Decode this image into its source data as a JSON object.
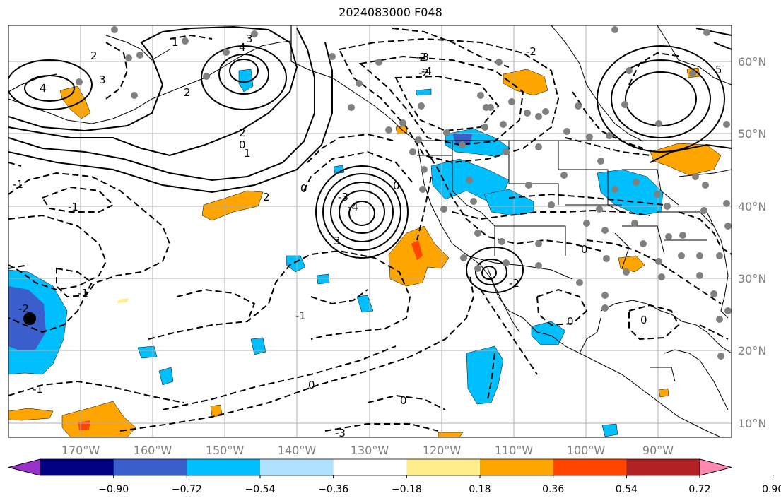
{
  "title": "2024083000 F048",
  "lon_ticks": [
    "170°W",
    "160°W",
    "150°W",
    "140°W",
    "130°W",
    "120°W",
    "110°W",
    "100°W",
    "90°W"
  ],
  "lat_ticks": [
    "60°N",
    "50°N",
    "40°N",
    "30°N",
    "20°N",
    "10°N"
  ],
  "contour_labels": [
    "2",
    "3",
    "4",
    "2",
    "1",
    "-1",
    "-2",
    "-3",
    "-4",
    "0",
    "2",
    "3",
    "4",
    "5",
    "-1",
    "-2",
    "0",
    "1",
    "2",
    "-1",
    "-3",
    "0",
    "-4",
    "-2",
    "3",
    "0",
    "-1",
    "0",
    "-1",
    "0",
    "-2",
    "-3",
    "0",
    "0",
    "-2"
  ],
  "colorbar": {
    "colors": [
      "#9932cc",
      "#000080",
      "#3a5fcd",
      "#00bfff",
      "#b0e2ff",
      "#ffffff",
      "#ffec8b",
      "#ffa500",
      "#ff4500",
      "#b22222",
      "#ff88b0"
    ],
    "labels": [
      "−0.90",
      "−0.72",
      "−0.54",
      "−0.36",
      "−0.18",
      "0.18",
      "0.36",
      "0.54",
      "0.72",
      "0.90"
    ]
  },
  "colors": {
    "grid": "#b0b0b0",
    "stations": "#808080",
    "contour": "#000000",
    "tick_text": "#7f7f7f"
  }
}
